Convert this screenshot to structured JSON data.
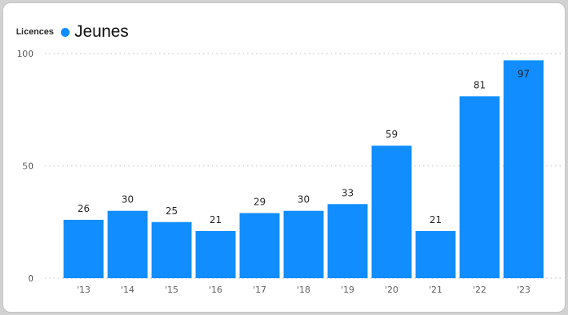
{
  "chart_data": {
    "type": "bar",
    "legend": {
      "title": "Licences",
      "placement": "top-left",
      "entries": [
        {
          "name": "Jeunes",
          "color": "#118dff"
        }
      ]
    },
    "categories": [
      "'13",
      "'14",
      "'15",
      "'16",
      "'17",
      "'18",
      "'19",
      "'20",
      "'21",
      "'22",
      "'23"
    ],
    "series": [
      {
        "name": "Jeunes",
        "values": [
          26,
          30,
          25,
          21,
          29,
          30,
          33,
          59,
          21,
          81,
          97
        ],
        "color": "#118dff"
      }
    ],
    "y_ticks": [
      0,
      50,
      100
    ],
    "ylim": [
      0,
      100
    ],
    "grid": true
  }
}
